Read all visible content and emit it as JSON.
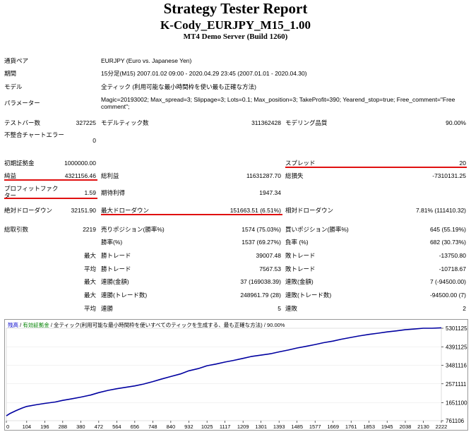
{
  "header": {
    "title": "Strategy Tester Report",
    "subtitle": "K-Cody_EURJPY_M15_1.00",
    "server": "MT4 Demo Server (Build 1260)"
  },
  "info": {
    "symbol_label": "通貨ペア",
    "symbol_value": "EURJPY (Euro vs. Japanese Yen)",
    "period_label": "期間",
    "period_value": "15分足(M15) 2007.01.02 09:00 - 2020.04.29 23:45 (2007.01.01 - 2020.04.30)",
    "model_label": "モデル",
    "model_value": "全ティック (利用可能な最小時間枠を使い最も正確な方法)",
    "params_label": "パラメーター",
    "params_value": "Magic=20193002; Max_spread=3; Slippage=3; Lots=0.1; Max_position=3; TakeProfit=390; Yearend_stop=true; Free_comment=\"Free comment\";"
  },
  "stats": {
    "bars_label": "テストバー数",
    "bars_value": "327225",
    "ticks_label": "モデルティック数",
    "ticks_value": "311362428",
    "quality_label": "モデリング品質",
    "quality_value": "90.00%",
    "mismatch_label": "不整合チャートエラー",
    "mismatch_value": "0",
    "deposit_label": "初期証拠金",
    "deposit_value": "1000000.00",
    "spread_label": "スプレッド",
    "spread_value": "20",
    "netprofit_label": "純益",
    "netprofit_value": "4321156.46",
    "grossprofit_label": "総利益",
    "grossprofit_value": "11631287.70",
    "grossloss_label": "総損失",
    "grossloss_value": "-7310131.25",
    "pf_label": "プロフィットファクター",
    "pf_value": "1.59",
    "payoff_label": "期待利得",
    "payoff_value": "1947.34",
    "absdd_label": "絶対ドローダウン",
    "absdd_value": "32151.90",
    "maxdd_label": "最大ドローダウン",
    "maxdd_value": "151663.51 (6.51%)",
    "reldd_label": "相対ドローダウン",
    "reldd_value": "7.81% (111410.32)",
    "trades_label": "総取引数",
    "trades_value": "2219",
    "short_label": "売りポジション(勝率%)",
    "short_value": "1574 (75.03%)",
    "long_label": "買いポジション(勝率%)",
    "long_value": "645 (55.19%)",
    "winrate_label": "勝率(%)",
    "winrate_value": "1537 (69.27%)",
    "lossrate_label": "負率 (%)",
    "lossrate_value": "682 (30.73%)",
    "max_label": "最大",
    "avg_label": "平均",
    "largest_win_label": "勝トレード",
    "largest_win_value": "39007.48",
    "largest_loss_label": "敗トレード",
    "largest_loss_value": "-13750.80",
    "avg_win_label": "勝トレード",
    "avg_win_value": "7567.53",
    "avg_loss_label": "敗トレード",
    "avg_loss_value": "-10718.67",
    "consec_wins_label": "連勝(金額)",
    "consec_wins_value": "37 (169038.39)",
    "consec_losses_label": "連敗(金額)",
    "consec_losses_value": "7 (-94500.00)",
    "consec_profit_label": "連勝(トレード数)",
    "consec_profit_value": "248961.79 (28)",
    "consec_loss_label": "連敗(トレード数)",
    "consec_loss_value": "-94500.00 (7)",
    "avg_consec_wins_label": "連勝",
    "avg_consec_wins_value": "5",
    "avg_consec_losses_label": "連敗",
    "avg_consec_losses_value": "2"
  },
  "chart": {
    "legend_balance": "残高",
    "legend_sep1": " / ",
    "legend_equity": "有効証拠金",
    "legend_rest": " / 全ティック(利用可能な最小時間枠を使いすべてのティックを生成する、最も正確な方法) / 90.00%"
  },
  "chart_data": {
    "type": "line",
    "title": "",
    "xlabel": "",
    "ylabel": "",
    "x_ticks": [
      "0",
      "104",
      "196",
      "288",
      "380",
      "472",
      "564",
      "656",
      "748",
      "840",
      "932",
      "1025",
      "1117",
      "1209",
      "1301",
      "1393",
      "1485",
      "1577",
      "1669",
      "1761",
      "1853",
      "1945",
      "2038",
      "2130",
      "2222"
    ],
    "y_ticks": [
      "761106",
      "1651100",
      "2571111",
      "3481116",
      "4391125",
      "5301125"
    ],
    "xlim": [
      0,
      2222
    ],
    "ylim": [
      761106,
      5301125
    ],
    "series": [
      {
        "color": "#0000a0",
        "x": [
          0,
          20,
          50,
          80,
          104,
          150,
          196,
          250,
          288,
          330,
          380,
          430,
          472,
          520,
          564,
          610,
          656,
          700,
          748,
          790,
          840,
          890,
          932,
          980,
          1025,
          1070,
          1117,
          1160,
          1209,
          1250,
          1301,
          1350,
          1393,
          1440,
          1485,
          1530,
          1577,
          1620,
          1669,
          1710,
          1761,
          1800,
          1853,
          1900,
          1945,
          1990,
          2038,
          2080,
          2130,
          2175,
          2222
        ],
        "values": [
          1000000,
          1120000,
          1260000,
          1380000,
          1460000,
          1540000,
          1610000,
          1680000,
          1760000,
          1830000,
          1920000,
          2020000,
          2140000,
          2250000,
          2330000,
          2400000,
          2470000,
          2560000,
          2680000,
          2800000,
          2930000,
          3060000,
          3210000,
          3320000,
          3460000,
          3540000,
          3640000,
          3720000,
          3820000,
          3910000,
          3980000,
          4050000,
          4140000,
          4230000,
          4330000,
          4410000,
          4500000,
          4590000,
          4670000,
          4760000,
          4850000,
          4920000,
          5000000,
          5060000,
          5120000,
          5170000,
          5230000,
          5260000,
          5300000,
          5300000,
          5321156
        ]
      }
    ]
  }
}
